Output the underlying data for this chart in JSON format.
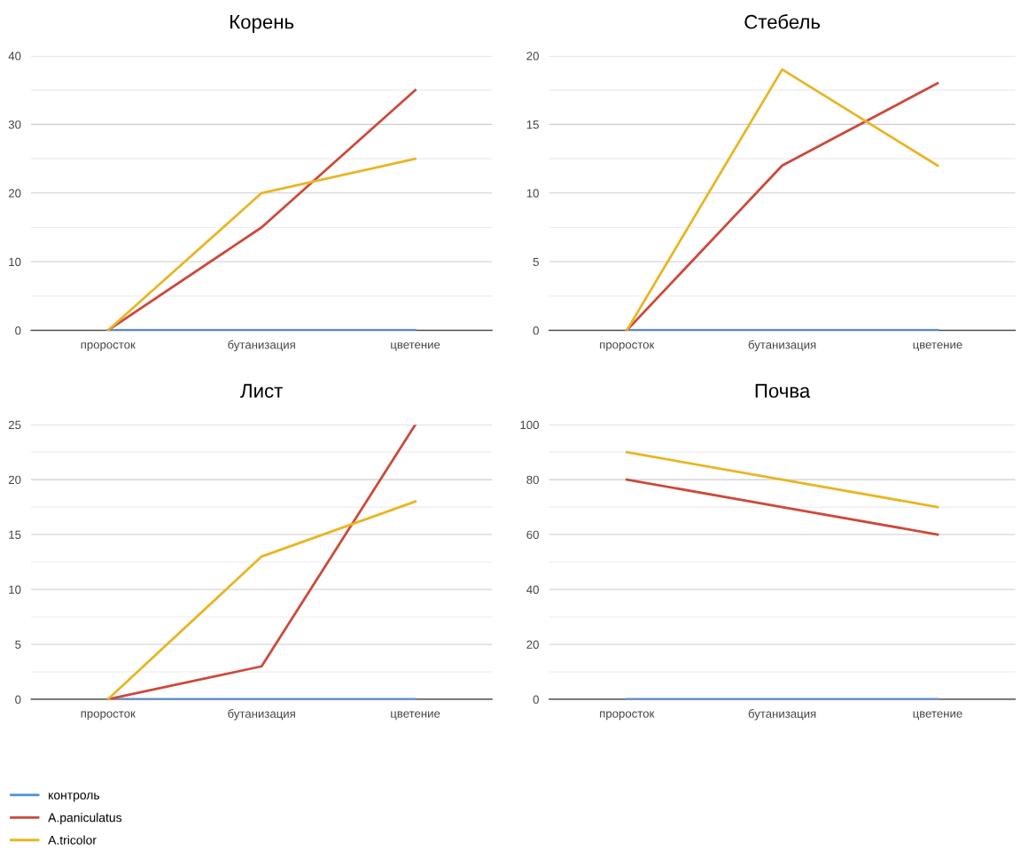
{
  "chart_data": [
    {
      "type": "line",
      "title": "Корень",
      "categories": [
        "проросток",
        "бутанизация",
        "цветение"
      ],
      "ylim": [
        0,
        40
      ],
      "yticks": [
        0,
        {
          "value": 5,
          "label": null
        },
        10,
        {
          "value": 15,
          "label": null
        },
        20,
        {
          "value": 25,
          "label": null
        },
        30,
        {
          "value": 35,
          "label": null
        },
        40
      ],
      "grid": "y",
      "legend": "bottom left",
      "series": [
        {
          "name": "контроль",
          "color": "#4a8fdc",
          "values": [
            0,
            0,
            0
          ]
        },
        {
          "name": "A.paniculatus",
          "color": "#cc4a3c",
          "values": [
            0,
            15,
            35
          ]
        },
        {
          "name": "A.tricolor",
          "color": "#e8b624",
          "values": [
            0,
            20,
            25
          ]
        }
      ]
    },
    {
      "type": "line",
      "title": "Стебель",
      "categories": [
        "проросток",
        "бутанизация",
        "цветение"
      ],
      "ylim": [
        0,
        20
      ],
      "yticks": [
        0,
        {
          "value": 2.5,
          "label": null
        },
        5,
        {
          "value": 7.5,
          "label": null
        },
        10,
        {
          "value": 12.5,
          "label": null
        },
        15,
        {
          "value": 17.5,
          "label": null
        },
        20
      ],
      "grid": "y",
      "series": [
        {
          "color": "#4a8fdc",
          "values": [
            0,
            0,
            0
          ]
        },
        {
          "color": "#cc4a3c",
          "values": [
            0,
            12,
            18
          ]
        },
        {
          "color": "#e8b624",
          "values": [
            0,
            19,
            12
          ]
        }
      ]
    },
    {
      "type": "line",
      "title": "Лист",
      "categories": [
        "проросток",
        "бутанизация",
        "цветение"
      ],
      "ylim": [
        0,
        25
      ],
      "yticks": [
        0,
        {
          "value": 2.5,
          "label": null
        },
        5,
        {
          "value": 7.5,
          "label": null
        },
        10,
        {
          "value": 12.5,
          "label": null
        },
        15,
        {
          "value": 17.5,
          "label": null
        },
        20,
        {
          "value": 22.5,
          "label": null
        },
        25
      ],
      "grid": "y",
      "series": [
        {
          "color": "#4a8fdc",
          "values": [
            0,
            0,
            0
          ]
        },
        {
          "color": "#cc4a3c",
          "values": [
            0,
            3,
            25
          ]
        },
        {
          "color": "#e8b624",
          "values": [
            0,
            13,
            18
          ]
        }
      ]
    },
    {
      "type": "line",
      "title": "Почва",
      "categories": [
        "проросток",
        "бутанизация",
        "цветение"
      ],
      "ylim": [
        0,
        100
      ],
      "yticks": [
        0,
        {
          "value": 10,
          "label": null
        },
        20,
        {
          "value": 30,
          "label": null
        },
        40,
        {
          "value": 50,
          "label": null
        },
        60,
        {
          "value": 70,
          "label": null
        },
        80,
        {
          "value": 90,
          "label": null
        },
        100
      ],
      "grid": "y",
      "series": [
        {
          "color": "#4a8fdc",
          "values": [
            0,
            0,
            0
          ]
        },
        {
          "color": "#cc4a3c",
          "values": [
            80,
            70,
            60
          ]
        },
        {
          "color": "#e8b624",
          "values": [
            90,
            80,
            70
          ]
        }
      ]
    }
  ]
}
